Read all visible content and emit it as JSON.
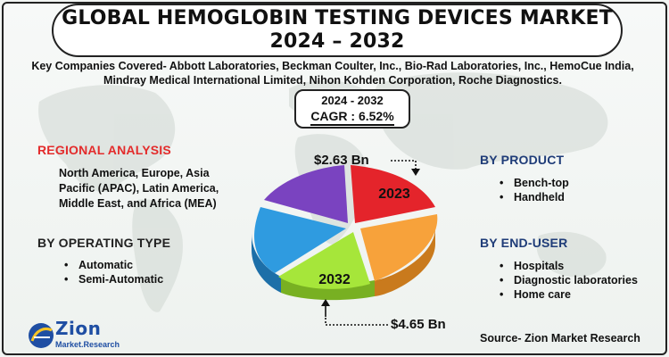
{
  "title": {
    "line1": "GLOBAL HEMOGLOBIN TESTING DEVICES MARKET",
    "line2": "2024 – 2032"
  },
  "companies": {
    "line1": "Key Companies Covered- Abbott Laboratories, Beckman Coulter, Inc., Bio-Rad Laboratories, Inc., HemoCue India,",
    "line2": "Mindray Medical International Limited, Nihon Kohden Corporation, Roche Diagnostics."
  },
  "cagr": {
    "years": "2024 - 2032",
    "value": "CAGR : 6.52%"
  },
  "regional": {
    "heading": "REGIONAL ANALYSIS",
    "text": "North America, Europe, Asia Pacific (APAC), Latin America, Middle East, and Africa (MEA)"
  },
  "operating_type": {
    "heading": "BY OPERATING TYPE",
    "items": [
      "Automatic",
      "Semi-Automatic"
    ]
  },
  "product": {
    "heading": "BY PRODUCT",
    "items": [
      "Bench-top",
      "Handheld"
    ]
  },
  "end_user": {
    "heading": "BY END-USER",
    "items": [
      "Hospitals",
      "Diagnostic laboratories",
      "Home care"
    ]
  },
  "pie": {
    "label_2023": "2023",
    "label_2032": "2032",
    "value_2023": "$2.63 Bn",
    "value_2032": "$4.65 Bn",
    "slice_colors": [
      "#e4242b",
      "#f7a23b",
      "#a6e63a",
      "#2f9be0",
      "#7a43c0"
    ]
  },
  "logo": {
    "name": "Zion",
    "sub": "Market.Research"
  },
  "source": "Source- Zion Market Research",
  "colors": {
    "regional_heading": "#e32b2b",
    "section_heading": "#1f3c78",
    "logo": "#1f4ea3"
  }
}
